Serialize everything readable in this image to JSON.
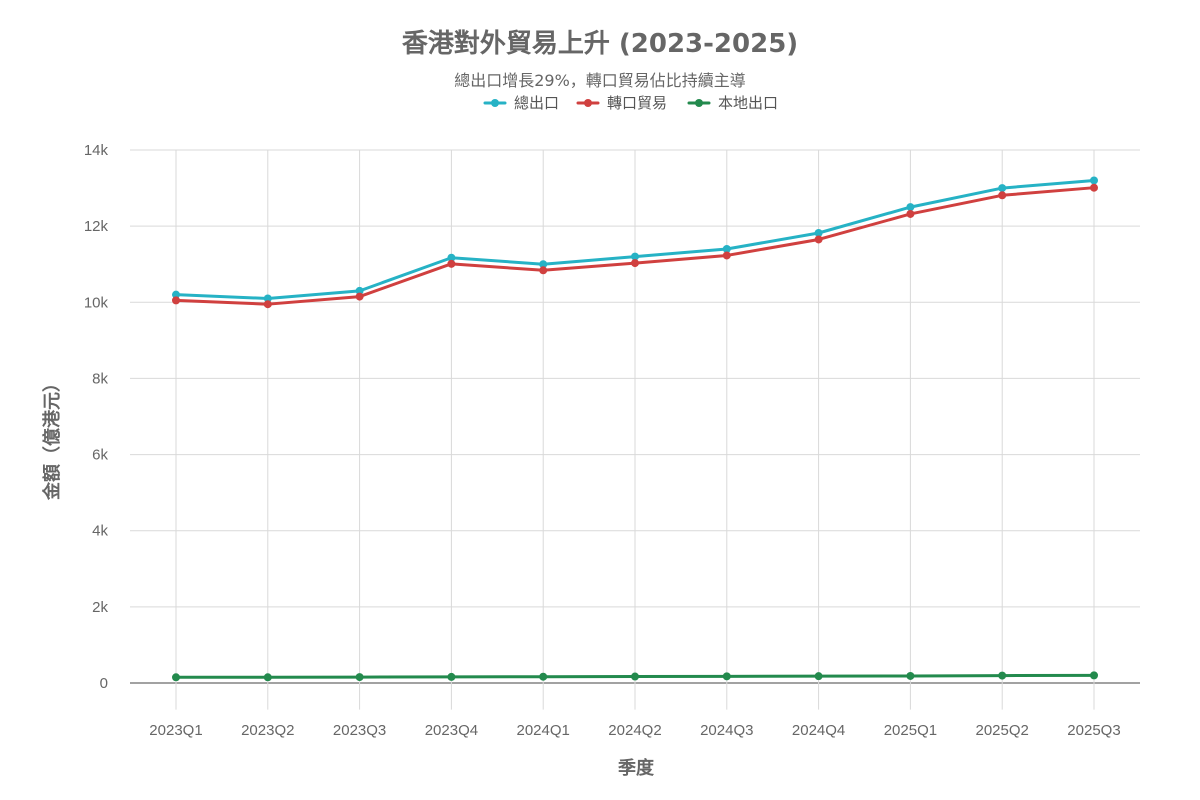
{
  "chart_data": {
    "type": "line",
    "title": "香港對外貿易上升 (2023-2025)",
    "subtitle": "總出口增長29%，轉口貿易佔比持續主導",
    "xlabel": "季度",
    "ylabel": "金額（億港元）",
    "categories": [
      "2023Q1",
      "2023Q2",
      "2023Q3",
      "2023Q4",
      "2024Q1",
      "2024Q2",
      "2024Q3",
      "2024Q4",
      "2025Q1",
      "2025Q2",
      "2025Q3"
    ],
    "ylim": [
      -700,
      14000
    ],
    "yticks": [
      0,
      2000,
      4000,
      6000,
      8000,
      10000,
      12000,
      14000
    ],
    "ytick_labels": [
      "0",
      "2k",
      "4k",
      "6k",
      "8k",
      "10k",
      "12k",
      "14k"
    ],
    "grid": true,
    "legend_position": "top-center",
    "series": [
      {
        "name": "總出口",
        "color": "#26b2c5",
        "values": [
          10200,
          10100,
          10300,
          11170,
          11000,
          11200,
          11400,
          11820,
          12500,
          13000,
          13200
        ]
      },
      {
        "name": "轉口貿易",
        "color": "#d0403f",
        "values": [
          10050,
          9950,
          10150,
          11010,
          10840,
          11030,
          11230,
          11650,
          12320,
          12810,
          13010
        ]
      },
      {
        "name": "本地出口",
        "color": "#238a4d",
        "values": [
          150,
          150,
          155,
          160,
          165,
          170,
          175,
          180,
          185,
          195,
          200
        ]
      }
    ]
  }
}
